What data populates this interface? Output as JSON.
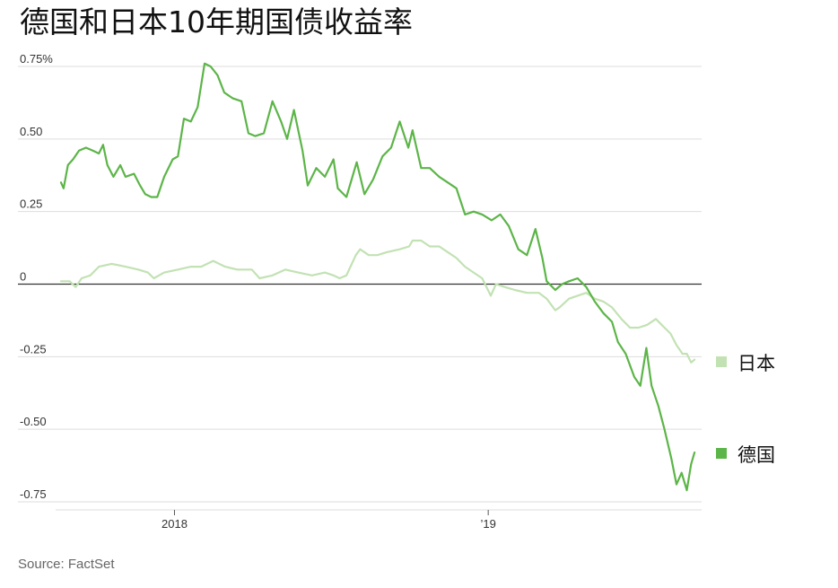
{
  "title": "德国和日本10年期国债收益率",
  "source": "Source: FactSet",
  "colors": {
    "germany": "#5cb548",
    "japan": "#c2e2b3",
    "zero_line": "#333333",
    "grid": "#dddddd"
  },
  "chart_data": {
    "type": "line",
    "title": "德国和日本10年期国债收益率",
    "xlabel": "",
    "ylabel": "",
    "x_ticks": [
      {
        "label": "2018",
        "date": "2018-01-01"
      },
      {
        "label": "’19",
        "date": "2019-01-01"
      }
    ],
    "y_ticks": [
      {
        "label": "0.75%",
        "value": 0.75
      },
      {
        "label": "0.50",
        "value": 0.5
      },
      {
        "label": "0.25",
        "value": 0.25
      },
      {
        "label": "0",
        "value": 0
      },
      {
        "label": "-0.25",
        "value": -0.25
      },
      {
        "label": "-0.50",
        "value": -0.5
      },
      {
        "label": "-0.75",
        "value": -0.75
      }
    ],
    "xlim": [
      "2017-08-22",
      "2019-08-31"
    ],
    "ylim": [
      -0.75,
      0.75
    ],
    "grid": true,
    "legend_position": "right",
    "series": [
      {
        "name": "日本",
        "color": "#c2e2b3",
        "points": [
          [
            "2017-08-22",
            0.01
          ],
          [
            "2017-09-01",
            0.01
          ],
          [
            "2017-09-08",
            -0.01
          ],
          [
            "2017-09-15",
            0.02
          ],
          [
            "2017-09-25",
            0.03
          ],
          [
            "2017-10-05",
            0.06
          ],
          [
            "2017-10-20",
            0.07
          ],
          [
            "2017-11-05",
            0.06
          ],
          [
            "2017-11-20",
            0.05
          ],
          [
            "2017-12-01",
            0.04
          ],
          [
            "2017-12-08",
            0.02
          ],
          [
            "2017-12-20",
            0.04
          ],
          [
            "2018-01-05",
            0.05
          ],
          [
            "2018-01-20",
            0.06
          ],
          [
            "2018-02-01",
            0.06
          ],
          [
            "2018-02-15",
            0.08
          ],
          [
            "2018-03-01",
            0.06
          ],
          [
            "2018-03-15",
            0.05
          ],
          [
            "2018-04-01",
            0.05
          ],
          [
            "2018-04-10",
            0.02
          ],
          [
            "2018-04-25",
            0.03
          ],
          [
            "2018-05-10",
            0.05
          ],
          [
            "2018-05-25",
            0.04
          ],
          [
            "2018-06-10",
            0.03
          ],
          [
            "2018-06-25",
            0.04
          ],
          [
            "2018-07-05",
            0.03
          ],
          [
            "2018-07-12",
            0.02
          ],
          [
            "2018-07-20",
            0.03
          ],
          [
            "2018-07-31",
            0.1
          ],
          [
            "2018-08-05",
            0.12
          ],
          [
            "2018-08-15",
            0.1
          ],
          [
            "2018-08-25",
            0.1
          ],
          [
            "2018-09-05",
            0.11
          ],
          [
            "2018-09-20",
            0.12
          ],
          [
            "2018-10-01",
            0.13
          ],
          [
            "2018-10-05",
            0.15
          ],
          [
            "2018-10-15",
            0.15
          ],
          [
            "2018-10-25",
            0.13
          ],
          [
            "2018-11-05",
            0.13
          ],
          [
            "2018-11-15",
            0.11
          ],
          [
            "2018-11-25",
            0.09
          ],
          [
            "2018-12-05",
            0.06
          ],
          [
            "2018-12-15",
            0.04
          ],
          [
            "2018-12-25",
            0.02
          ],
          [
            "2019-01-04",
            -0.04
          ],
          [
            "2019-01-10",
            0.0
          ],
          [
            "2019-01-20",
            -0.01
          ],
          [
            "2019-02-01",
            -0.02
          ],
          [
            "2019-02-15",
            -0.03
          ],
          [
            "2019-03-01",
            -0.03
          ],
          [
            "2019-03-10",
            -0.05
          ],
          [
            "2019-03-20",
            -0.09
          ],
          [
            "2019-03-25",
            -0.08
          ],
          [
            "2019-04-05",
            -0.05
          ],
          [
            "2019-04-15",
            -0.04
          ],
          [
            "2019-04-25",
            -0.03
          ],
          [
            "2019-05-05",
            -0.05
          ],
          [
            "2019-05-15",
            -0.06
          ],
          [
            "2019-05-25",
            -0.08
          ],
          [
            "2019-06-05",
            -0.12
          ],
          [
            "2019-06-15",
            -0.15
          ],
          [
            "2019-06-25",
            -0.15
          ],
          [
            "2019-07-05",
            -0.14
          ],
          [
            "2019-07-15",
            -0.12
          ],
          [
            "2019-07-25",
            -0.15
          ],
          [
            "2019-08-01",
            -0.17
          ],
          [
            "2019-08-08",
            -0.21
          ],
          [
            "2019-08-15",
            -0.24
          ],
          [
            "2019-08-20",
            -0.24
          ],
          [
            "2019-08-25",
            -0.27
          ],
          [
            "2019-08-29",
            -0.26
          ]
        ]
      },
      {
        "name": "德国",
        "color": "#5cb548",
        "points": [
          [
            "2017-08-22",
            0.35
          ],
          [
            "2017-08-25",
            0.33
          ],
          [
            "2017-08-30",
            0.41
          ],
          [
            "2017-09-05",
            0.43
          ],
          [
            "2017-09-12",
            0.46
          ],
          [
            "2017-09-20",
            0.47
          ],
          [
            "2017-09-28",
            0.46
          ],
          [
            "2017-10-05",
            0.45
          ],
          [
            "2017-10-10",
            0.48
          ],
          [
            "2017-10-15",
            0.41
          ],
          [
            "2017-10-22",
            0.37
          ],
          [
            "2017-10-30",
            0.41
          ],
          [
            "2017-11-05",
            0.37
          ],
          [
            "2017-11-15",
            0.38
          ],
          [
            "2017-11-22",
            0.34
          ],
          [
            "2017-11-28",
            0.31
          ],
          [
            "2017-12-05",
            0.3
          ],
          [
            "2017-12-12",
            0.3
          ],
          [
            "2017-12-20",
            0.37
          ],
          [
            "2017-12-30",
            0.43
          ],
          [
            "2018-01-05",
            0.44
          ],
          [
            "2018-01-12",
            0.57
          ],
          [
            "2018-01-20",
            0.56
          ],
          [
            "2018-01-28",
            0.61
          ],
          [
            "2018-02-05",
            0.76
          ],
          [
            "2018-02-12",
            0.75
          ],
          [
            "2018-02-20",
            0.72
          ],
          [
            "2018-02-28",
            0.66
          ],
          [
            "2018-03-10",
            0.64
          ],
          [
            "2018-03-20",
            0.63
          ],
          [
            "2018-03-28",
            0.52
          ],
          [
            "2018-04-05",
            0.51
          ],
          [
            "2018-04-15",
            0.52
          ],
          [
            "2018-04-25",
            0.63
          ],
          [
            "2018-05-05",
            0.56
          ],
          [
            "2018-05-12",
            0.5
          ],
          [
            "2018-05-20",
            0.6
          ],
          [
            "2018-05-30",
            0.46
          ],
          [
            "2018-06-05",
            0.34
          ],
          [
            "2018-06-15",
            0.4
          ],
          [
            "2018-06-25",
            0.37
          ],
          [
            "2018-07-05",
            0.43
          ],
          [
            "2018-07-10",
            0.33
          ],
          [
            "2018-07-20",
            0.3
          ],
          [
            "2018-08-01",
            0.42
          ],
          [
            "2018-08-10",
            0.31
          ],
          [
            "2018-08-20",
            0.36
          ],
          [
            "2018-08-31",
            0.44
          ],
          [
            "2018-09-10",
            0.47
          ],
          [
            "2018-09-20",
            0.56
          ],
          [
            "2018-09-30",
            0.47
          ],
          [
            "2018-10-05",
            0.53
          ],
          [
            "2018-10-15",
            0.4
          ],
          [
            "2018-10-25",
            0.4
          ],
          [
            "2018-11-05",
            0.37
          ],
          [
            "2018-11-15",
            0.35
          ],
          [
            "2018-11-25",
            0.33
          ],
          [
            "2018-12-05",
            0.24
          ],
          [
            "2018-12-15",
            0.25
          ],
          [
            "2018-12-25",
            0.24
          ],
          [
            "2019-01-05",
            0.22
          ],
          [
            "2019-01-15",
            0.24
          ],
          [
            "2019-01-25",
            0.2
          ],
          [
            "2019-02-05",
            0.12
          ],
          [
            "2019-02-15",
            0.1
          ],
          [
            "2019-02-25",
            0.19
          ],
          [
            "2019-03-05",
            0.09
          ],
          [
            "2019-03-10",
            0.01
          ],
          [
            "2019-03-20",
            -0.02
          ],
          [
            "2019-03-28",
            0.0
          ],
          [
            "2019-04-05",
            0.01
          ],
          [
            "2019-04-15",
            0.02
          ],
          [
            "2019-04-25",
            -0.01
          ],
          [
            "2019-05-05",
            -0.06
          ],
          [
            "2019-05-15",
            -0.1
          ],
          [
            "2019-05-25",
            -0.13
          ],
          [
            "2019-06-01",
            -0.2
          ],
          [
            "2019-06-10",
            -0.24
          ],
          [
            "2019-06-20",
            -0.32
          ],
          [
            "2019-06-27",
            -0.35
          ],
          [
            "2019-07-04",
            -0.22
          ],
          [
            "2019-07-10",
            -0.35
          ],
          [
            "2019-07-18",
            -0.42
          ],
          [
            "2019-07-25",
            -0.5
          ],
          [
            "2019-08-02",
            -0.6
          ],
          [
            "2019-08-08",
            -0.69
          ],
          [
            "2019-08-14",
            -0.65
          ],
          [
            "2019-08-20",
            -0.71
          ],
          [
            "2019-08-25",
            -0.62
          ],
          [
            "2019-08-29",
            -0.58
          ]
        ]
      }
    ]
  }
}
